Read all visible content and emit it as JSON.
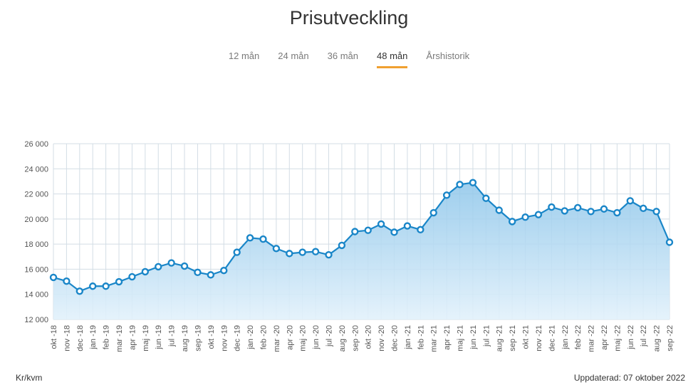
{
  "header": {
    "title": "Prisutveckling"
  },
  "tabs": [
    {
      "label": "12 mån",
      "active": false
    },
    {
      "label": "24 mån",
      "active": false
    },
    {
      "label": "36 mån",
      "active": false
    },
    {
      "label": "48 mån",
      "active": true
    },
    {
      "label": "Årshistorik",
      "active": false
    }
  ],
  "footer": {
    "unit": "Kr/kvm",
    "updated": "Uppdaterad: 07 oktober 2022"
  },
  "colors": {
    "line": "#1a86c8",
    "fill_top": "#8ec6ea",
    "fill_bottom": "#e2f1fb",
    "grid": "#d3dde5",
    "tab_active": "#f0a030"
  },
  "chart_data": {
    "type": "area",
    "title": "Prisutveckling",
    "ylabel": "Kr/kvm",
    "ylim": [
      12000,
      26000
    ],
    "yticks": [
      12000,
      14000,
      16000,
      18000,
      20000,
      22000,
      24000,
      26000
    ],
    "ytick_labels": [
      "12 000",
      "14 000",
      "16 000",
      "18 000",
      "20 000",
      "22 000",
      "24 000",
      "26 000"
    ],
    "grid": true,
    "categories": [
      "okt -18",
      "nov -18",
      "dec -18",
      "jan -19",
      "feb -19",
      "mar -19",
      "apr -19",
      "maj -19",
      "jun -19",
      "jul -19",
      "aug -19",
      "sep -19",
      "okt -19",
      "nov -19",
      "dec -19",
      "jan -20",
      "feb -20",
      "mar -20",
      "apr -20",
      "maj -20",
      "jun -20",
      "jul -20",
      "aug -20",
      "sep -20",
      "okt -20",
      "nov -20",
      "dec -20",
      "jan -21",
      "feb -21",
      "mar -21",
      "apr -21",
      "maj -21",
      "jun -21",
      "jul -21",
      "aug -21",
      "sep -21",
      "okt -21",
      "nov -21",
      "dec -21",
      "jan -22",
      "feb -22",
      "mar -22",
      "apr -22",
      "maj -22",
      "jun -22",
      "jul -22",
      "aug -22",
      "sep -22"
    ],
    "values": [
      15350,
      15050,
      14250,
      14650,
      14650,
      15000,
      15400,
      15800,
      16200,
      16500,
      16250,
      15750,
      15550,
      15900,
      17350,
      18500,
      18400,
      17650,
      17250,
      17350,
      17400,
      17150,
      17900,
      19000,
      19100,
      19600,
      18950,
      19450,
      19150,
      20500,
      21900,
      22750,
      22900,
      21650,
      20700,
      19800,
      20150,
      20350,
      20950,
      20650,
      20900,
      20600,
      20800,
      20500,
      21450,
      20850,
      20600,
      18150
    ]
  }
}
